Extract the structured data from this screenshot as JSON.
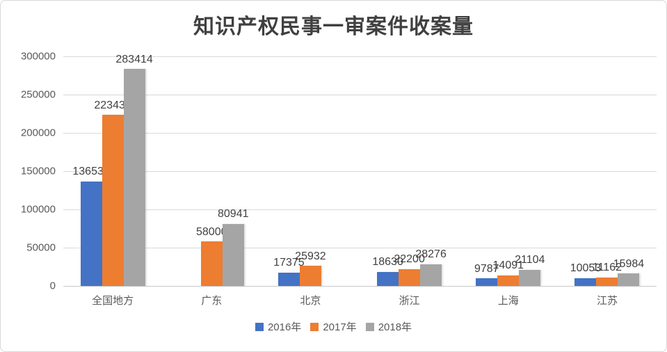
{
  "title": "知识产权民事一审案件收案量",
  "chart_data": {
    "type": "bar",
    "title": "知识产权民事一审案件收案量",
    "categories": [
      "全国地方",
      "广东",
      "北京",
      "浙江",
      "上海",
      "江苏"
    ],
    "series": [
      {
        "name": "2016年",
        "color": "#4472C4",
        "values": [
          136534,
          null,
          17375,
          18630,
          9787,
          10053
        ]
      },
      {
        "name": "2017年",
        "color": "#ED7D31",
        "values": [
          223437,
          58000,
          25932,
          22200,
          14091,
          11162
        ]
      },
      {
        "name": "2018年",
        "color": "#A5A5A5",
        "values": [
          283414,
          80941,
          null,
          28276,
          21104,
          15984
        ]
      }
    ],
    "ylim": [
      0,
      300000
    ],
    "yticks": [
      0,
      50000,
      100000,
      150000,
      200000,
      250000,
      300000
    ],
    "grid": true,
    "data_labels": true,
    "legend_position": "bottom",
    "xlabel": "",
    "ylabel": ""
  },
  "colors": {
    "title_text": "#404040",
    "axis_text": "#595959",
    "data_label_text": "#404040",
    "gridline": "#D9D9D9",
    "background": "#FFFFFF",
    "border": "#D8D8D8"
  }
}
